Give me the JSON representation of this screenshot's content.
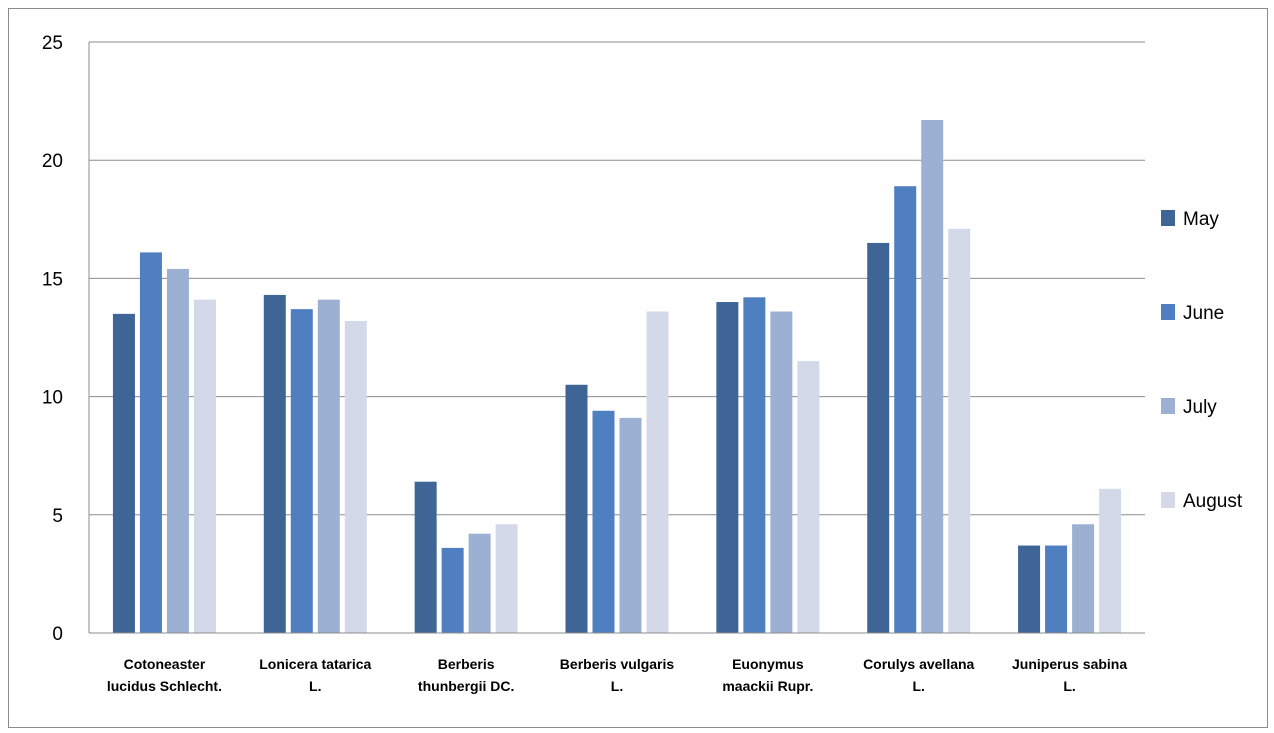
{
  "chart_data": {
    "type": "bar",
    "title": "",
    "xlabel": "",
    "ylabel": "",
    "ylim": [
      0,
      25
    ],
    "yticks": [
      "0",
      "5",
      "10",
      "15",
      "20",
      "25"
    ],
    "grid": true,
    "legend_position": "right",
    "categories": [
      [
        "Cotoneaster",
        "lucidus Schlecht."
      ],
      [
        "Lonicera tatarica",
        "L."
      ],
      [
        "Berberis",
        "thunbergii DC."
      ],
      [
        "Berberis vulgaris",
        "L."
      ],
      [
        "Euonymus",
        "maackii Rupr."
      ],
      [
        "Corulys avellana",
        "L."
      ],
      [
        "Juniperus sabina",
        "L."
      ]
    ],
    "series": [
      {
        "name": "May",
        "color": "#3f6596",
        "values": [
          13.5,
          14.3,
          6.4,
          10.5,
          14.0,
          16.5,
          3.7
        ]
      },
      {
        "name": "June",
        "color": "#4f7fc1",
        "values": [
          16.1,
          13.7,
          3.6,
          9.4,
          14.2,
          18.9,
          3.7
        ]
      },
      {
        "name": "July",
        "color": "#9bb0d2",
        "values": [
          15.4,
          14.1,
          4.2,
          9.1,
          13.6,
          21.7,
          4.6
        ]
      },
      {
        "name": "August",
        "color": "#d3d9e8",
        "values": [
          14.1,
          13.2,
          4.6,
          13.6,
          11.5,
          17.1,
          6.1
        ]
      }
    ]
  }
}
